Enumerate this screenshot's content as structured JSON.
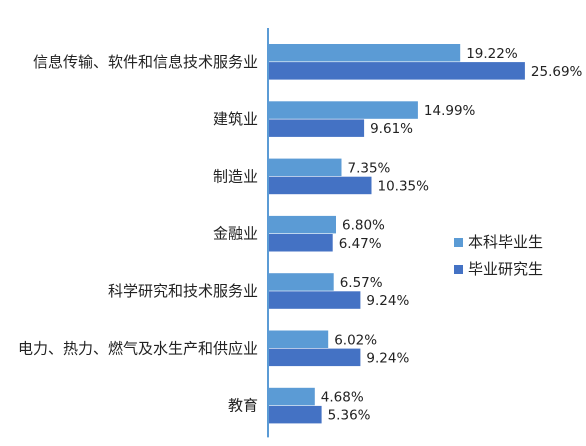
{
  "chart_data": {
    "type": "bar",
    "orientation": "horizontal",
    "categories": [
      "信息传输、软件和信息技术服务业",
      "建筑业",
      "制造业",
      "金融业",
      "科学研究和技术服务业",
      "电力、热力、燃气及水生产和供应业",
      "教育"
    ],
    "series": [
      {
        "name": "本科毕业生",
        "color": "#5b9bd5",
        "values": [
          19.22,
          14.99,
          7.35,
          6.8,
          6.57,
          6.02,
          4.68
        ],
        "labels": [
          "19.22%",
          "14.99%",
          "7.35%",
          "6.80%",
          "6.57%",
          "6.02%",
          "4.68%"
        ]
      },
      {
        "name": "毕业研究生",
        "color": "#4472c4",
        "values": [
          25.69,
          9.61,
          10.35,
          6.47,
          9.24,
          9.24,
          5.36
        ],
        "labels": [
          "25.69%",
          "9.61%",
          "10.35%",
          "6.47%",
          "9.24%",
          "9.24%",
          "5.36%"
        ]
      }
    ],
    "legend_position": "right",
    "grid": false,
    "title": "",
    "xlabel": "",
    "ylabel": ""
  }
}
